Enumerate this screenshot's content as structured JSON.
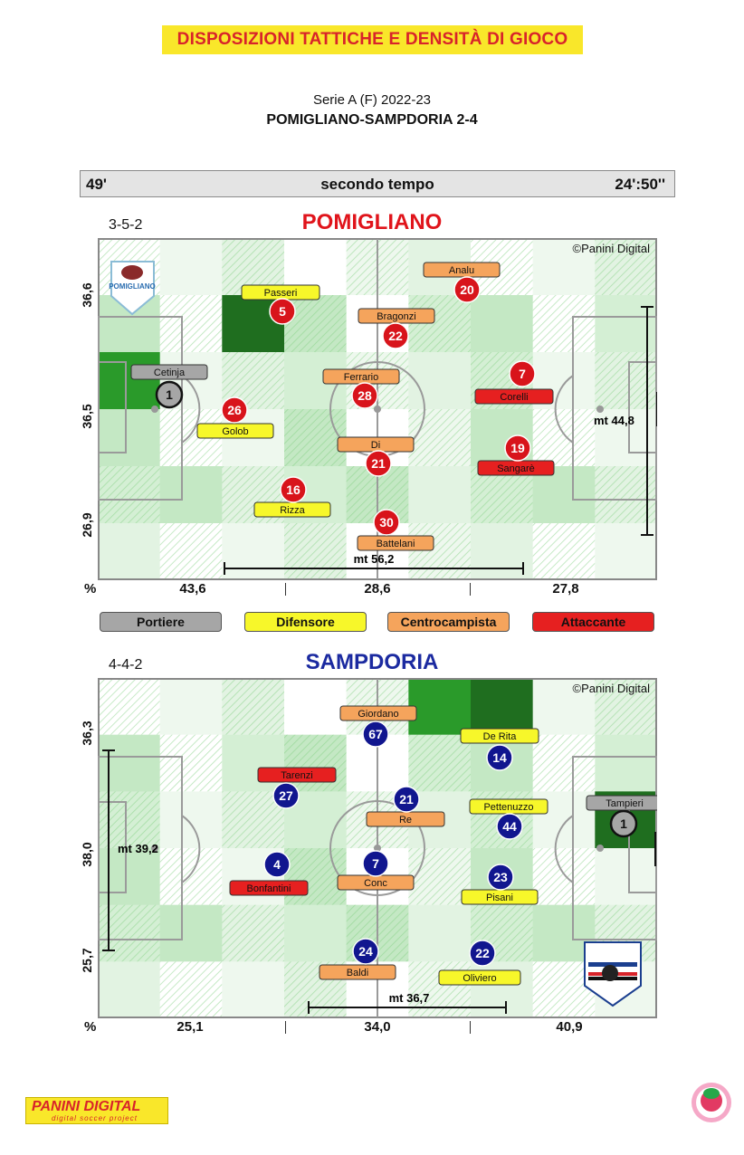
{
  "banner": "DISPOSIZIONI TATTICHE E DENSITÀ DI GIOCO",
  "competition": "Serie A (F) 2022-23",
  "match": "POMIGLIANO-SAMPDORIA 2-4",
  "timebar": {
    "minute": "49'",
    "period": "secondo tempo",
    "clock": "24':50''"
  },
  "watermark": "©Panini Digital",
  "percent_label": "%",
  "legend": {
    "goalkeeper": "Portiere",
    "defender": "Difensore",
    "midfielder": "Centrocampista",
    "attacker": "Attaccante"
  },
  "colors": {
    "goalkeeper": "#a6a6a6",
    "defender": "#f7f72a",
    "midfielder": "#f5a45c",
    "attacker": "#e62020",
    "home_circle": "#d8141b",
    "away_circle": "#11168f",
    "home_title": "#e0141b",
    "away_title": "#1b2aa0"
  },
  "pomigliano": {
    "name": "POMIGLIANO",
    "formation": "3-5-2",
    "width_label": "mt 56,2",
    "depth_label": "mt 44,8",
    "y_labels": [
      "36,6",
      "36,5",
      "26,9"
    ],
    "x_labels": [
      "43,6",
      "28,6",
      "27,8"
    ],
    "players": [
      {
        "num": "1",
        "name": "Cetinja",
        "role": "goalkeeper"
      },
      {
        "num": "5",
        "name": "Passeri",
        "role": "defender"
      },
      {
        "num": "26",
        "name": "Golob",
        "role": "defender"
      },
      {
        "num": "16",
        "name": "Rizza",
        "role": "defender"
      },
      {
        "num": "20",
        "name": "Analu",
        "role": "midfielder"
      },
      {
        "num": "22",
        "name": "Bragonzi",
        "role": "midfielder"
      },
      {
        "num": "28",
        "name": "Ferrario",
        "role": "midfielder"
      },
      {
        "num": "21",
        "name": "Di",
        "role": "midfielder"
      },
      {
        "num": "30",
        "name": "Battelani",
        "role": "midfielder"
      },
      {
        "num": "7",
        "name": "Corelli",
        "role": "attacker"
      },
      {
        "num": "19",
        "name": "Sangarè",
        "role": "attacker"
      }
    ]
  },
  "sampdoria": {
    "name": "SAMPDORIA",
    "formation": "4-4-2",
    "width_label": "mt 36,7",
    "depth_label": "mt 39,2",
    "y_labels": [
      "36,3",
      "38,0",
      "25,7"
    ],
    "x_labels": [
      "25,1",
      "34,0",
      "40,9"
    ],
    "players": [
      {
        "num": "1",
        "name": "Tampieri",
        "role": "goalkeeper"
      },
      {
        "num": "14",
        "name": "De Rita",
        "role": "defender"
      },
      {
        "num": "44",
        "name": "Pettenuzzo",
        "role": "defender"
      },
      {
        "num": "23",
        "name": "Pisani",
        "role": "defender"
      },
      {
        "num": "22",
        "name": "Oliviero",
        "role": "defender"
      },
      {
        "num": "67",
        "name": "Giordano",
        "role": "midfielder"
      },
      {
        "num": "21",
        "name": "Re",
        "role": "midfielder"
      },
      {
        "num": "7",
        "name": "Conc",
        "role": "midfielder"
      },
      {
        "num": "24",
        "name": "Baldi",
        "role": "midfielder"
      },
      {
        "num": "27",
        "name": "Tarenzi",
        "role": "attacker"
      },
      {
        "num": "4",
        "name": "Bonfantini",
        "role": "attacker"
      }
    ]
  },
  "footer": {
    "brand": "PANINI DIGITAL",
    "tagline": "digital soccer project"
  }
}
